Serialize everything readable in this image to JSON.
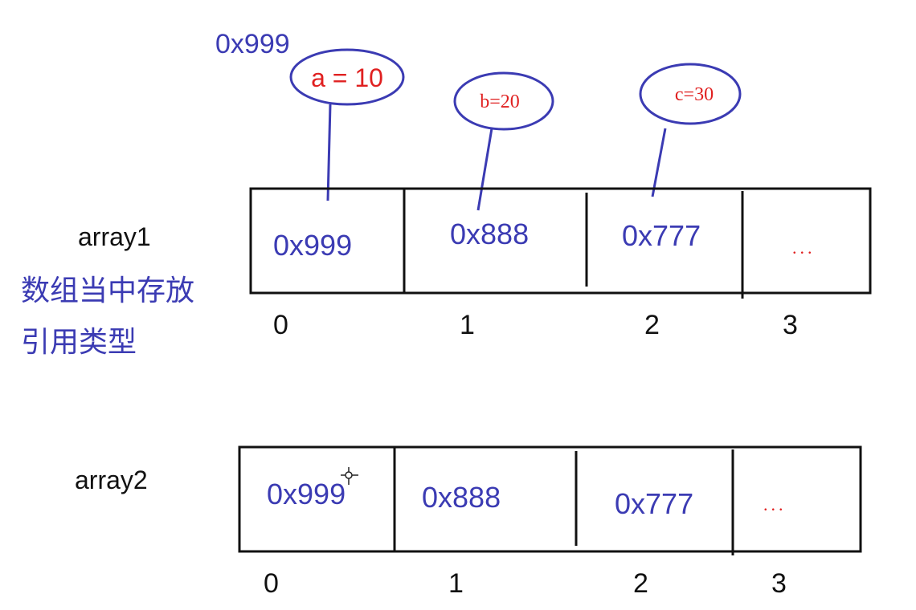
{
  "objects": {
    "a": {
      "address": "0x999",
      "label": "a = 10"
    },
    "b": {
      "label": "b=20"
    },
    "c": {
      "label": "c=30"
    }
  },
  "array1": {
    "name": "array1",
    "cells": [
      "0x999",
      "0x888",
      "0x777",
      "..."
    ],
    "indices": [
      "0",
      "1",
      "2",
      "3"
    ]
  },
  "note": {
    "line1": "数组当中存放",
    "line2": "引用类型"
  },
  "array2": {
    "name": "array2",
    "cells": [
      "0x999",
      "0x888",
      "0x777",
      "..."
    ],
    "indices": [
      "0",
      "1",
      "2",
      "3"
    ]
  },
  "colors": {
    "ink_blue": "#3b3bb3",
    "value_red": "#e02020",
    "box_black": "#111111"
  }
}
